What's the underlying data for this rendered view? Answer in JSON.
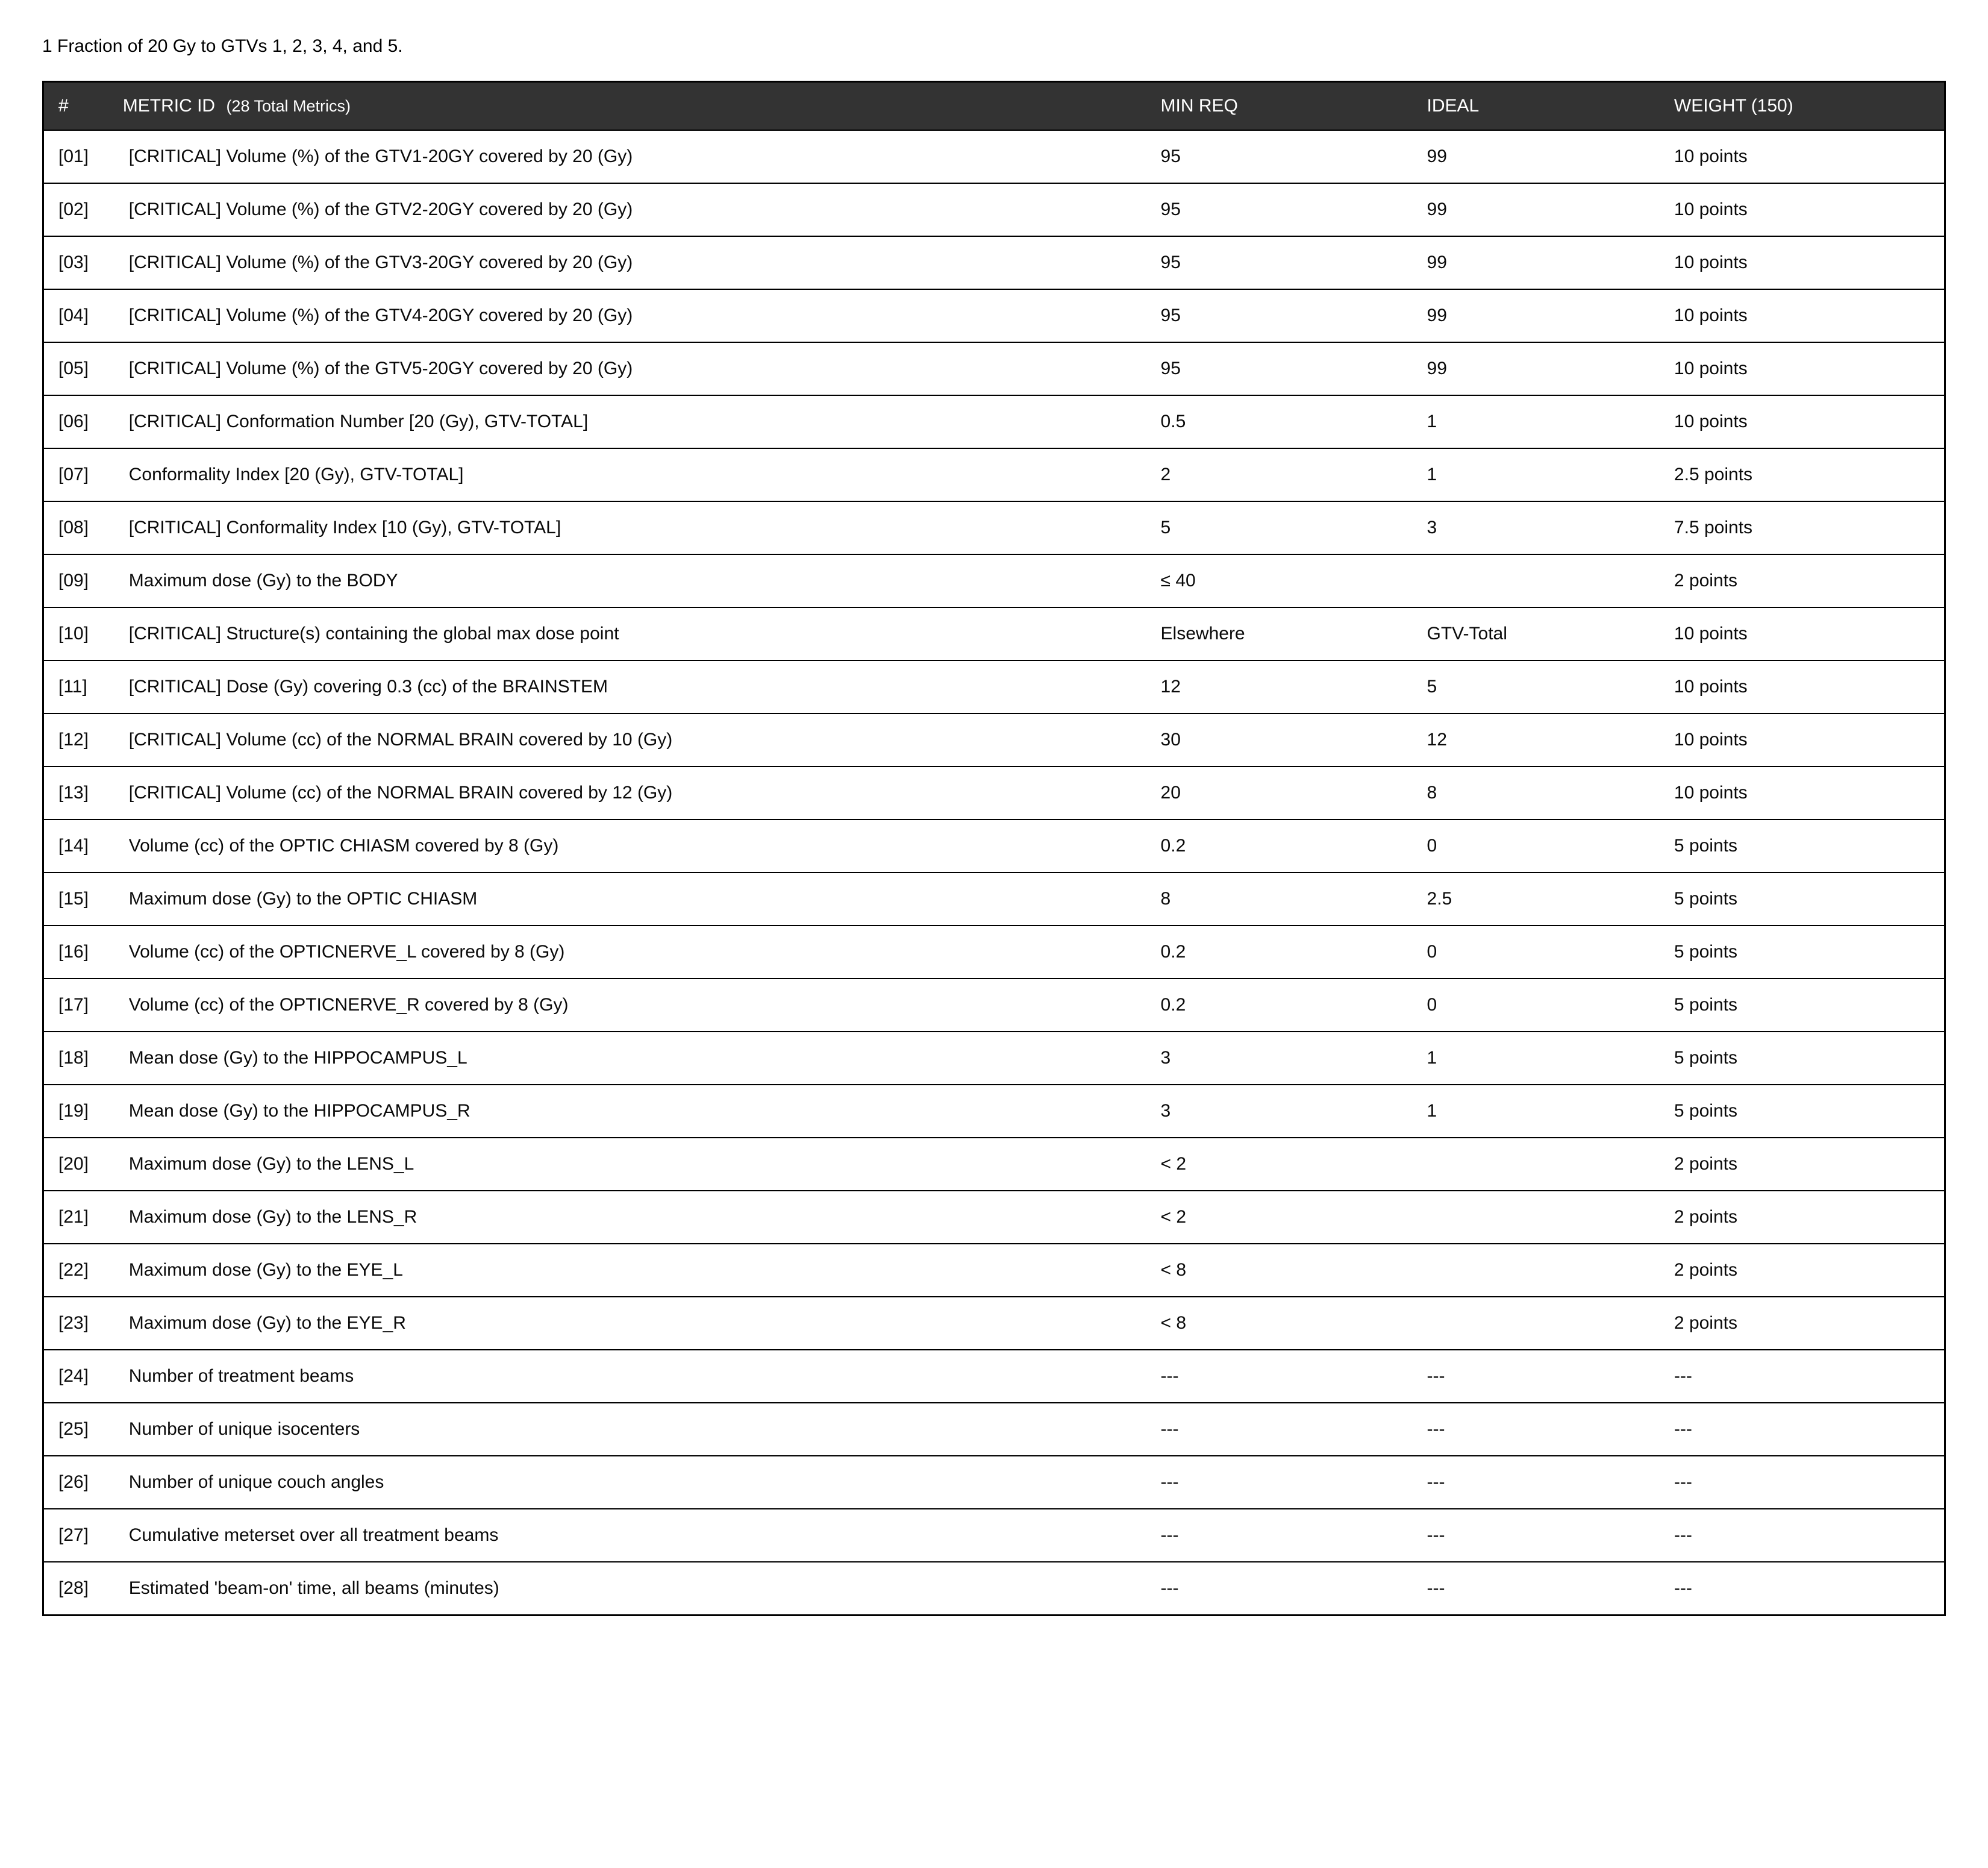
{
  "caption": "1 Fraction of 20 Gy to GTVs 1, 2, 3, 4, and 5.",
  "header": {
    "num": "#",
    "metric": "METRIC ID",
    "metric_count": "(28 Total Metrics)",
    "min": "MIN REQ",
    "ideal": "IDEAL",
    "weight": "WEIGHT (150)"
  },
  "colors": {
    "header_bg": "#333333",
    "header_fg": "#ffffff",
    "border": "#000000",
    "body_bg": "#ffffff",
    "text": "#000000"
  },
  "rows": [
    {
      "num": "[01]",
      "metric": "[CRITICAL] Volume (%) of the GTV1-20GY covered by 20 (Gy)",
      "min": "95",
      "ideal": "99",
      "weight": "10 points"
    },
    {
      "num": "[02]",
      "metric": "[CRITICAL] Volume (%) of the GTV2-20GY covered by 20 (Gy)",
      "min": "95",
      "ideal": "99",
      "weight": "10 points"
    },
    {
      "num": "[03]",
      "metric": "[CRITICAL] Volume (%) of the GTV3-20GY covered by 20 (Gy)",
      "min": "95",
      "ideal": "99",
      "weight": "10 points"
    },
    {
      "num": "[04]",
      "metric": "[CRITICAL] Volume (%) of the GTV4-20GY covered by 20 (Gy)",
      "min": "95",
      "ideal": "99",
      "weight": "10 points"
    },
    {
      "num": "[05]",
      "metric": "[CRITICAL] Volume (%) of the GTV5-20GY covered by 20 (Gy)",
      "min": "95",
      "ideal": "99",
      "weight": "10 points"
    },
    {
      "num": "[06]",
      "metric": "[CRITICAL] Conformation Number [20 (Gy), GTV-TOTAL]",
      "min": "0.5",
      "ideal": "1",
      "weight": "10 points"
    },
    {
      "num": "[07]",
      "metric": "Conformality Index [20 (Gy), GTV-TOTAL]",
      "min": "2",
      "ideal": "1",
      "weight": "2.5 points"
    },
    {
      "num": "[08]",
      "metric": "[CRITICAL] Conformality Index [10 (Gy), GTV-TOTAL]",
      "min": "5",
      "ideal": "3",
      "weight": "7.5 points"
    },
    {
      "num": "[09]",
      "metric": "Maximum dose (Gy) to the BODY",
      "min": "≤ 40",
      "ideal": "",
      "weight": "2 points"
    },
    {
      "num": "[10]",
      "metric": "[CRITICAL] Structure(s) containing the global max dose point",
      "min": "Elsewhere",
      "ideal": "GTV-Total",
      "weight": "10 points"
    },
    {
      "num": "[11]",
      "metric": "[CRITICAL] Dose (Gy) covering 0.3 (cc) of the BRAINSTEM",
      "min": "12",
      "ideal": "5",
      "weight": "10 points"
    },
    {
      "num": "[12]",
      "metric": "[CRITICAL] Volume (cc) of the NORMAL BRAIN covered by 10 (Gy)",
      "min": "30",
      "ideal": "12",
      "weight": "10 points"
    },
    {
      "num": "[13]",
      "metric": "[CRITICAL] Volume (cc) of the NORMAL BRAIN covered by 12 (Gy)",
      "min": "20",
      "ideal": "8",
      "weight": "10 points"
    },
    {
      "num": "[14]",
      "metric": "Volume (cc) of the OPTIC CHIASM covered by 8 (Gy)",
      "min": "0.2",
      "ideal": "0",
      "weight": "5 points"
    },
    {
      "num": "[15]",
      "metric": "Maximum dose (Gy) to the OPTIC CHIASM",
      "min": "8",
      "ideal": "2.5",
      "weight": "5 points"
    },
    {
      "num": "[16]",
      "metric": "Volume (cc) of the OPTICNERVE_L covered by 8 (Gy)",
      "min": "0.2",
      "ideal": "0",
      "weight": "5 points"
    },
    {
      "num": "[17]",
      "metric": "Volume (cc) of the OPTICNERVE_R covered by 8 (Gy)",
      "min": "0.2",
      "ideal": "0",
      "weight": "5 points"
    },
    {
      "num": "[18]",
      "metric": "Mean dose (Gy) to the HIPPOCAMPUS_L",
      "min": "3",
      "ideal": "1",
      "weight": "5 points"
    },
    {
      "num": "[19]",
      "metric": "Mean dose (Gy) to the HIPPOCAMPUS_R",
      "min": "3",
      "ideal": "1",
      "weight": "5 points"
    },
    {
      "num": "[20]",
      "metric": "Maximum dose (Gy) to the LENS_L",
      "min": "< 2",
      "ideal": "",
      "weight": "2 points"
    },
    {
      "num": "[21]",
      "metric": "Maximum dose (Gy) to the LENS_R",
      "min": "< 2",
      "ideal": "",
      "weight": "2 points"
    },
    {
      "num": "[22]",
      "metric": "Maximum dose (Gy) to the EYE_L",
      "min": "< 8",
      "ideal": "",
      "weight": "2 points"
    },
    {
      "num": "[23]",
      "metric": "Maximum dose (Gy) to the EYE_R",
      "min": "< 8",
      "ideal": "",
      "weight": "2 points"
    },
    {
      "num": "[24]",
      "metric": "Number of treatment beams",
      "min": "---",
      "ideal": "---",
      "weight": "---"
    },
    {
      "num": "[25]",
      "metric": "Number of unique isocenters",
      "min": "---",
      "ideal": "---",
      "weight": "---"
    },
    {
      "num": "[26]",
      "metric": "Number of unique couch angles",
      "min": "---",
      "ideal": "---",
      "weight": "---"
    },
    {
      "num": "[27]",
      "metric": "Cumulative meterset over all treatment beams",
      "min": "---",
      "ideal": "---",
      "weight": "---"
    },
    {
      "num": "[28]",
      "metric": "Estimated 'beam-on' time, all beams (minutes)",
      "min": "---",
      "ideal": "---",
      "weight": "---"
    }
  ]
}
